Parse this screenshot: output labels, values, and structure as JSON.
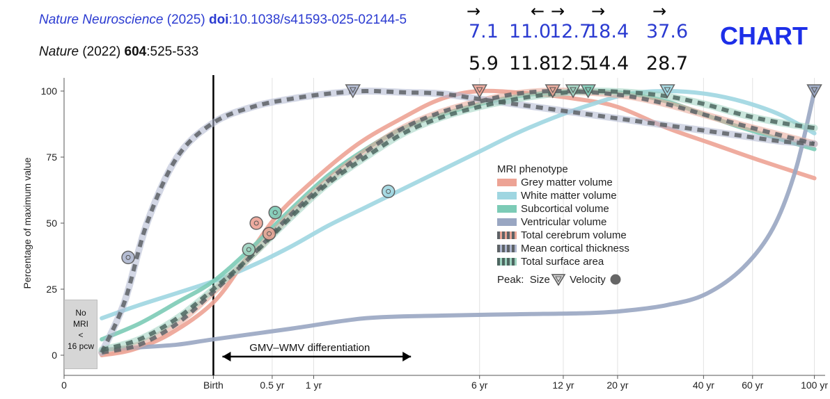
{
  "citations": [
    {
      "journal": "Nature Neuroscience",
      "year": "(2025)",
      "doi_label": "doi",
      "doi": ":10.1038/s41593-025-02144-5"
    },
    {
      "journal": "Nature",
      "year": "(2022)",
      "volume": "604",
      "pages": ":525-533"
    }
  ],
  "chart_word": "CHART",
  "arrows": [
    "→",
    "←",
    "→",
    "→",
    "→"
  ],
  "peak_values_2025": [
    "7.1",
    "11.0",
    "12.7",
    "18.4",
    "37.6"
  ],
  "peak_values_2022": [
    "5.9",
    "11.8",
    "12.5",
    "14.4",
    "28.7"
  ],
  "colors": {
    "grey_matter": "#eda395",
    "white_matter": "#9fd6e1",
    "subcortical": "#7ccbb6",
    "ventricular": "#99a6c2",
    "cortical_thickness_dash": "#5d6266",
    "total_cerebrum_dash": "#5d6266",
    "surface_area_dash": "#4d6660"
  },
  "chart_data": {
    "type": "line",
    "ylabel": "Percentage of maximum value",
    "ylim": [
      0,
      100
    ],
    "yticks": [
      "0",
      "25",
      "50",
      "75",
      "100"
    ],
    "x_scale": "nonlinear age (post-conception)",
    "xticks": [
      "0",
      "Birth",
      "0.5 yr",
      "1 yr",
      "6 yr",
      "12 yr",
      "20 yr",
      "40 yr",
      "60 yr",
      "100 yr"
    ],
    "xtick_pos": [
      0,
      1.98,
      2.76,
      3.31,
      5.51,
      6.62,
      7.34,
      8.48,
      9.13,
      9.95
    ],
    "x_domain": [
      0,
      10
    ],
    "birth_line": "Birth",
    "annotation": {
      "label": "GMV–WMV differentiation",
      "from": 2.1,
      "to": 4.6
    },
    "no_mri": {
      "lines": [
        "No",
        "MRI",
        "<",
        "16 pcw"
      ]
    },
    "legend_title": "MRI phenotype",
    "peak_label": "Peak:",
    "peak_size_label": "Size",
    "peak_velocity_label": "Velocity",
    "series": [
      {
        "name": "Grey matter volume",
        "key": "grey_matter",
        "style": "solid",
        "x": [
          0.5,
          0.9,
          1.4,
          1.98,
          2.4,
          2.8,
          3.3,
          3.9,
          4.5,
          5.0,
          5.51,
          6.2,
          6.8,
          7.34,
          8.0,
          8.6,
          9.2,
          9.95
        ],
        "y": [
          0,
          2,
          8,
          20,
          36,
          52,
          66,
          80,
          90,
          97,
          100,
          99,
          97,
          94,
          86,
          80,
          74,
          67
        ],
        "size_peak": 5.51,
        "velocity_peak": {
          "x": 2.55,
          "y": 50
        }
      },
      {
        "name": "White matter volume",
        "key": "white_matter",
        "style": "solid",
        "x": [
          0.5,
          1.0,
          1.98,
          2.5,
          3.0,
          3.5,
          4.0,
          4.5,
          5.0,
          5.5,
          6.0,
          6.5,
          7.0,
          7.5,
          8.0,
          8.5,
          9.0,
          9.5,
          9.95
        ],
        "y": [
          14,
          19,
          28,
          34,
          41,
          49,
          56,
          63,
          70,
          77,
          84,
          90,
          95,
          99,
          100,
          99,
          96,
          91,
          84
        ],
        "size_peak": 8.0,
        "velocity_peak": {
          "x": 4.3,
          "y": 62
        }
      },
      {
        "name": "Subcortical volume",
        "key": "subcortical",
        "style": "solid",
        "x": [
          0.5,
          1.0,
          1.5,
          1.98,
          2.5,
          3.0,
          3.5,
          4.0,
          4.5,
          5.0,
          5.5,
          6.0,
          6.5,
          7.0,
          7.5,
          8.0,
          8.5,
          9.0,
          9.95
        ],
        "y": [
          6,
          12,
          20,
          28,
          41,
          55,
          68,
          78,
          86,
          91,
          95,
          98,
          99.5,
          100,
          99,
          96,
          91,
          86,
          78
        ],
        "size_peak": 6.95,
        "velocity_peak": {
          "x": 2.8,
          "y": 54
        }
      },
      {
        "name": "Ventricular volume",
        "key": "ventricular",
        "style": "solid",
        "x": [
          0.5,
          1.0,
          1.5,
          1.98,
          3.0,
          4.0,
          5.0,
          6.0,
          7.0,
          7.5,
          8.0,
          8.5,
          9.0,
          9.4,
          9.7,
          9.95
        ],
        "y": [
          2,
          3,
          4,
          6,
          10,
          14,
          15,
          15.5,
          16,
          17,
          19,
          23,
          33,
          48,
          70,
          100
        ],
        "size_peak": 9.95,
        "velocity_peak": null
      },
      {
        "name": "Total cerebrum volume",
        "key": "total_cerebrum",
        "style": "dashed",
        "band": "#e8a596",
        "x": [
          0.5,
          1.0,
          1.5,
          1.98,
          2.5,
          3.0,
          3.5,
          4.0,
          4.5,
          5.0,
          5.5,
          6.0,
          6.5,
          7.0,
          7.5,
          8.0,
          8.5,
          9.0,
          9.95
        ],
        "y": [
          1,
          4,
          12,
          24,
          38,
          53,
          66,
          77,
          86,
          92,
          96,
          99,
          100,
          99.5,
          98,
          95,
          91,
          87,
          80
        ],
        "size_peak": 6.48,
        "velocity_peak": {
          "x": 2.72,
          "y": 46
        }
      },
      {
        "name": "Mean cortical thickness",
        "key": "cortical_thickness",
        "style": "dashed",
        "band": "#aeb6cf",
        "x": [
          0.5,
          0.8,
          1.1,
          1.5,
          1.98,
          2.5,
          3.0,
          3.5,
          4.0,
          4.5,
          5.0,
          5.5,
          6.0,
          6.5,
          7.0,
          7.5,
          8.0,
          8.5,
          9.0,
          9.5,
          9.95
        ],
        "y": [
          1,
          20,
          50,
          75,
          88,
          94,
          97,
          99,
          100,
          99.5,
          99,
          97,
          95,
          93,
          91,
          89,
          87,
          85,
          83,
          81,
          80
        ],
        "size_peak": 3.83,
        "velocity_peak": {
          "x": 0.85,
          "y": 37
        }
      },
      {
        "name": "Total surface area",
        "key": "surface_area",
        "style": "dashed",
        "band": "#9dd2bf",
        "x": [
          0.5,
          1.0,
          1.5,
          1.98,
          2.5,
          3.0,
          3.5,
          4.0,
          4.5,
          5.0,
          5.5,
          6.0,
          6.5,
          7.0,
          7.5,
          8.0,
          8.5,
          9.0,
          9.5,
          9.95
        ],
        "y": [
          2,
          6,
          14,
          25,
          38,
          52,
          65,
          75,
          84,
          90,
          94,
          97,
          99,
          100,
          99.5,
          98,
          95,
          91,
          88,
          86
        ],
        "size_peak": 6.75,
        "velocity_peak": {
          "x": 2.45,
          "y": 40
        }
      }
    ]
  }
}
